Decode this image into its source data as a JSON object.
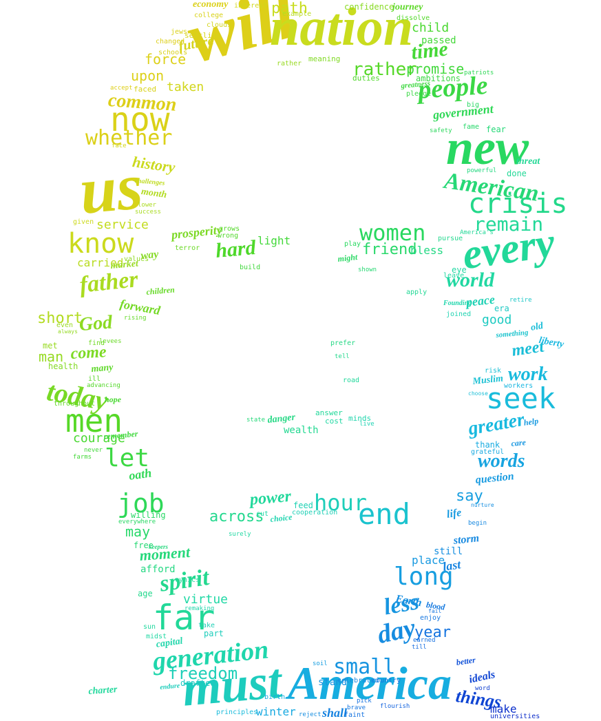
{
  "colors": {
    "background": "#ffffff",
    "gradient_stops": [
      "#e8a01a",
      "#e8c814",
      "#c8dc1e",
      "#50d828",
      "#28d860",
      "#20d8a8",
      "#18b8e0",
      "#1468e0",
      "#0a28c8"
    ]
  },
  "words": [
    {
      "text": "will",
      "style": "lib"
    },
    {
      "text": "nation",
      "style": "lib"
    },
    {
      "text": "us",
      "style": "lib"
    },
    {
      "text": "new",
      "style": "lib"
    },
    {
      "text": "must",
      "style": "lib"
    },
    {
      "text": "America",
      "style": "lib"
    },
    {
      "text": "every",
      "style": "lib"
    },
    {
      "text": "far",
      "style": "mono"
    },
    {
      "text": "now",
      "style": "mono"
    },
    {
      "text": "men",
      "style": "mono"
    },
    {
      "text": "end",
      "style": "mono"
    },
    {
      "text": "seek",
      "style": "mono"
    },
    {
      "text": "crisis",
      "style": "mono"
    },
    {
      "text": "people",
      "style": "lib"
    },
    {
      "text": "know",
      "style": "mono"
    },
    {
      "text": "today",
      "style": "lib"
    },
    {
      "text": "let",
      "style": "mono"
    },
    {
      "text": "job",
      "style": "mono"
    },
    {
      "text": "long",
      "style": "mono"
    },
    {
      "text": "day",
      "style": "lib"
    },
    {
      "text": "women",
      "style": "mono"
    },
    {
      "text": "small",
      "style": "mono"
    },
    {
      "text": "generation",
      "style": "lib"
    },
    {
      "text": "hour",
      "style": "mono"
    },
    {
      "text": "American",
      "style": "lib"
    },
    {
      "text": "whether",
      "style": "mono"
    },
    {
      "text": "common",
      "style": "lib"
    },
    {
      "text": "time",
      "style": "lib"
    },
    {
      "text": "rather",
      "style": "mono"
    },
    {
      "text": "world",
      "style": "lib"
    },
    {
      "text": "spirit",
      "style": "lib"
    },
    {
      "text": "less",
      "style": "lib"
    },
    {
      "text": "freedom",
      "style": "mono"
    },
    {
      "text": "greater",
      "style": "lib"
    },
    {
      "text": "words",
      "style": "lib"
    },
    {
      "text": "remain",
      "style": "mono"
    },
    {
      "text": "father",
      "style": "lib"
    },
    {
      "text": "work",
      "style": "lib"
    },
    {
      "text": "power",
      "style": "lib"
    },
    {
      "text": "history",
      "style": "lib"
    },
    {
      "text": "path",
      "style": "mono"
    },
    {
      "text": "upon",
      "style": "mono"
    },
    {
      "text": "force",
      "style": "mono"
    },
    {
      "text": "future",
      "style": "lib"
    },
    {
      "text": "promise",
      "style": "mono"
    },
    {
      "text": "government",
      "style": "lib"
    },
    {
      "text": "God",
      "style": "lib"
    },
    {
      "text": "hard",
      "style": "lib"
    },
    {
      "text": "friend",
      "style": "mono"
    },
    {
      "text": "short",
      "style": "mono"
    },
    {
      "text": "come",
      "style": "lib"
    },
    {
      "text": "man",
      "style": "mono"
    },
    {
      "text": "meet",
      "style": "lib"
    },
    {
      "text": "across",
      "style": "mono"
    },
    {
      "text": "moment",
      "style": "lib"
    },
    {
      "text": "may",
      "style": "mono"
    },
    {
      "text": "say",
      "style": "mono"
    },
    {
      "text": "year",
      "style": "mono"
    },
    {
      "text": "winter",
      "style": "mono"
    },
    {
      "text": "stand",
      "style": "mono"
    },
    {
      "text": "things",
      "style": "lib"
    },
    {
      "text": "ideals",
      "style": "lib"
    },
    {
      "text": "make",
      "style": "mono"
    },
    {
      "text": "taken",
      "style": "mono"
    },
    {
      "text": "service",
      "style": "mono"
    },
    {
      "text": "carried",
      "style": "mono"
    },
    {
      "text": "prosperity",
      "style": "lib"
    },
    {
      "text": "light",
      "style": "mono"
    },
    {
      "text": "bless",
      "style": "mono"
    },
    {
      "text": "peace",
      "style": "lib"
    },
    {
      "text": "good",
      "style": "mono"
    },
    {
      "text": "child",
      "style": "mono"
    },
    {
      "text": "passed",
      "style": "mono"
    },
    {
      "text": "economy",
      "style": "lib"
    },
    {
      "text": "month",
      "style": "lib"
    },
    {
      "text": "forward",
      "style": "lib"
    },
    {
      "text": "courage",
      "style": "mono"
    },
    {
      "text": "oath",
      "style": "lib"
    },
    {
      "text": "virtue",
      "style": "mono"
    },
    {
      "text": "afford",
      "style": "mono"
    },
    {
      "text": "question",
      "style": "lib"
    },
    {
      "text": "life",
      "style": "lib"
    },
    {
      "text": "place",
      "style": "mono"
    },
    {
      "text": "last",
      "style": "lib"
    },
    {
      "text": "still",
      "style": "mono"
    },
    {
      "text": "storm",
      "style": "lib"
    },
    {
      "text": "Earth",
      "style": "lib"
    },
    {
      "text": "enjoy",
      "style": "mono"
    },
    {
      "text": "country",
      "style": "mono"
    },
    {
      "text": "celebrated",
      "style": "mono"
    },
    {
      "text": "shall",
      "style": "lib"
    },
    {
      "text": "faint",
      "style": "mono"
    },
    {
      "text": "capital",
      "style": "lib"
    },
    {
      "text": "part",
      "style": "mono"
    },
    {
      "text": "take",
      "style": "mono"
    },
    {
      "text": "drafted",
      "style": "mono"
    },
    {
      "text": "danger",
      "style": "lib"
    },
    {
      "text": "wealth",
      "style": "mono"
    },
    {
      "text": "answer",
      "style": "mono"
    },
    {
      "text": "minds",
      "style": "mono"
    },
    {
      "text": "cost",
      "style": "mono"
    },
    {
      "text": "live",
      "style": "mono"
    },
    {
      "text": "cooperation",
      "style": "mono"
    },
    {
      "text": "feed",
      "style": "mono"
    },
    {
      "text": "choice",
      "style": "lib"
    },
    {
      "text": "cut",
      "style": "mono"
    },
    {
      "text": "Muslim",
      "style": "lib"
    },
    {
      "text": "workers",
      "style": "mono"
    },
    {
      "text": "risk",
      "style": "mono"
    },
    {
      "text": "choose",
      "style": "mono"
    },
    {
      "text": "thank",
      "style": "mono"
    },
    {
      "text": "grateful",
      "style": "mono"
    },
    {
      "text": "care",
      "style": "lib"
    },
    {
      "text": "help",
      "style": "lib"
    },
    {
      "text": "old",
      "style": "lib"
    },
    {
      "text": "liberty",
      "style": "lib"
    },
    {
      "text": "something",
      "style": "lib"
    },
    {
      "text": "era",
      "style": "mono"
    },
    {
      "text": "joined",
      "style": "mono"
    },
    {
      "text": "eye",
      "style": "mono"
    },
    {
      "text": "leave",
      "style": "mono"
    },
    {
      "text": "apply",
      "style": "mono"
    },
    {
      "text": "pursue",
      "style": "mono"
    },
    {
      "text": "America's",
      "style": "mono"
    },
    {
      "text": "shown",
      "style": "mono"
    },
    {
      "text": "might",
      "style": "lib"
    },
    {
      "text": "play",
      "style": "mono"
    },
    {
      "text": "build",
      "style": "mono"
    },
    {
      "text": "wrong",
      "style": "mono"
    },
    {
      "text": "grows",
      "style": "mono"
    },
    {
      "text": "terror",
      "style": "mono"
    },
    {
      "text": "way",
      "style": "lib"
    },
    {
      "text": "values",
      "style": "mono"
    },
    {
      "text": "market",
      "style": "lib"
    },
    {
      "text": "children",
      "style": "lib"
    },
    {
      "text": "rising",
      "style": "mono"
    },
    {
      "text": "health",
      "style": "mono"
    },
    {
      "text": "many",
      "style": "lib"
    },
    {
      "text": "ill",
      "style": "mono"
    },
    {
      "text": "advancing",
      "style": "mono"
    },
    {
      "text": "throughout",
      "style": "mono"
    },
    {
      "text": "hope",
      "style": "lib"
    },
    {
      "text": "remember",
      "style": "lib"
    },
    {
      "text": "farms",
      "style": "mono"
    },
    {
      "text": "never",
      "style": "mono"
    },
    {
      "text": "willing",
      "style": "mono"
    },
    {
      "text": "everywhere",
      "style": "mono"
    },
    {
      "text": "free",
      "style": "mono"
    },
    {
      "text": "age",
      "style": "mono"
    },
    {
      "text": "sun",
      "style": "mono"
    },
    {
      "text": "midst",
      "style": "mono"
    },
    {
      "text": "remaking",
      "style": "mono"
    },
    {
      "text": "meaning",
      "style": "mono"
    },
    {
      "text": "ambitions",
      "style": "mono"
    },
    {
      "text": "duties",
      "style": "mono"
    },
    {
      "text": "patriots",
      "style": "mono"
    },
    {
      "text": "pledge",
      "style": "mono"
    },
    {
      "text": "greatness",
      "style": "lib"
    },
    {
      "text": "fear",
      "style": "mono"
    },
    {
      "text": "big",
      "style": "mono"
    },
    {
      "text": "done",
      "style": "mono"
    },
    {
      "text": "threat",
      "style": "lib"
    },
    {
      "text": "confidence",
      "style": "mono"
    },
    {
      "text": "journey",
      "style": "lib"
    },
    {
      "text": "dissolve",
      "style": "mono"
    },
    {
      "text": "settling",
      "style": "mono"
    },
    {
      "text": "changed",
      "style": "mono"
    },
    {
      "text": "schools",
      "style": "mono"
    },
    {
      "text": "faced",
      "style": "mono"
    },
    {
      "text": "accept",
      "style": "mono"
    },
    {
      "text": "college",
      "style": "mono"
    },
    {
      "text": "jews",
      "style": "mono"
    },
    {
      "text": "interest",
      "style": "mono"
    },
    {
      "text": "clouds",
      "style": "mono"
    },
    {
      "text": "example",
      "style": "mono"
    },
    {
      "text": "rather",
      "style": "mono"
    },
    {
      "text": "success",
      "style": "mono"
    },
    {
      "text": "challenges",
      "style": "lib"
    },
    {
      "text": "lower",
      "style": "mono"
    },
    {
      "text": "given",
      "style": "mono"
    },
    {
      "text": "face",
      "style": "mono"
    },
    {
      "text": "even",
      "style": "mono"
    },
    {
      "text": "always",
      "style": "mono"
    },
    {
      "text": "met",
      "style": "mono"
    },
    {
      "text": "find",
      "style": "mono"
    },
    {
      "text": "levees",
      "style": "mono"
    },
    {
      "text": "road",
      "style": "mono"
    },
    {
      "text": "tell",
      "style": "mono"
    },
    {
      "text": "prefer",
      "style": "mono"
    },
    {
      "text": "state",
      "style": "mono"
    },
    {
      "text": "surely",
      "style": "mono"
    },
    {
      "text": "endure",
      "style": "lib"
    },
    {
      "text": "principles",
      "style": "mono"
    },
    {
      "text": "birth",
      "style": "mono"
    },
    {
      "text": "flourish",
      "style": "mono"
    },
    {
      "text": "reject",
      "style": "mono"
    },
    {
      "text": "brave",
      "style": "mono"
    },
    {
      "text": "pick",
      "style": "mono"
    },
    {
      "text": "soil",
      "style": "mono"
    },
    {
      "text": "earned",
      "style": "mono"
    },
    {
      "text": "till",
      "style": "mono"
    },
    {
      "text": "better",
      "style": "lib"
    },
    {
      "text": "word",
      "style": "mono"
    },
    {
      "text": "universities",
      "style": "mono"
    },
    {
      "text": "nurture",
      "style": "mono"
    },
    {
      "text": "begin",
      "style": "mono"
    },
    {
      "text": "retire",
      "style": "mono"
    },
    {
      "text": "Founding",
      "style": "lib"
    },
    {
      "text": "blood",
      "style": "lib"
    },
    {
      "text": "fail",
      "style": "mono"
    },
    {
      "text": "charter",
      "style": "lib"
    },
    {
      "text": "cynics",
      "style": "mono"
    },
    {
      "text": "keepers",
      "style": "lib"
    },
    {
      "text": "powerful",
      "style": "mono"
    },
    {
      "text": "safety",
      "style": "mono"
    },
    {
      "text": "fame",
      "style": "mono"
    },
    {
      "text": "waters",
      "style": "mono"
    }
  ]
}
